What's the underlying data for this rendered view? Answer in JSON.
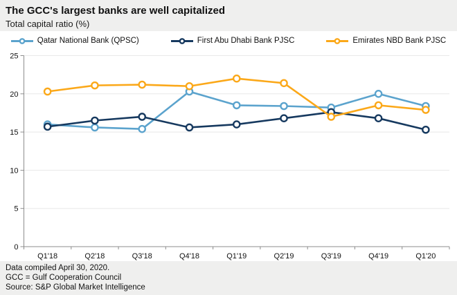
{
  "header": {
    "title": "The GCC's largest banks are well capitalized",
    "subtitle": "Total capital ratio (%)"
  },
  "footer": {
    "line1": "Data compiled April 30, 2020.",
    "line2": "GCC = Gulf Cooperation Council",
    "line3": "Source: S&P Global Market Intelligence"
  },
  "colors": {
    "background": "#efefee",
    "panel": "#ffffff",
    "gridline": "#e8e8e8",
    "axis": "#8c8c8c",
    "text": "#111111",
    "qnb_blue": "#5ba3cd",
    "fab_navy": "#16395f",
    "enbd_orange": "#fba819"
  },
  "chart_data": {
    "type": "line",
    "title": "The GCC's largest banks are well capitalized",
    "subtitle": "Total capital ratio (%)",
    "categories": [
      "Q1'18",
      "Q2'18",
      "Q3'18",
      "Q4'18",
      "Q1'19",
      "Q2'19",
      "Q3'19",
      "Q4'19",
      "Q1'20"
    ],
    "series": [
      {
        "name": "Qatar National Bank (QPSC)",
        "color": "#5ba3cd",
        "values": [
          16.0,
          15.6,
          15.4,
          20.3,
          18.5,
          18.4,
          18.2,
          20.0,
          18.4
        ]
      },
      {
        "name": "First Abu Dhabi Bank PJSC",
        "color": "#16395f",
        "values": [
          15.7,
          16.5,
          17.0,
          15.6,
          16.0,
          16.8,
          17.6,
          16.8,
          15.3
        ]
      },
      {
        "name": "Emirates NBD Bank PJSC",
        "color": "#fba819",
        "values": [
          20.3,
          21.1,
          21.2,
          21.0,
          22.0,
          21.4,
          17.0,
          18.5,
          17.9
        ]
      }
    ],
    "xlabel": "",
    "ylabel": "",
    "ylim": [
      0,
      25
    ],
    "ytick_step": 5,
    "grid": true,
    "legend_position": "top"
  }
}
